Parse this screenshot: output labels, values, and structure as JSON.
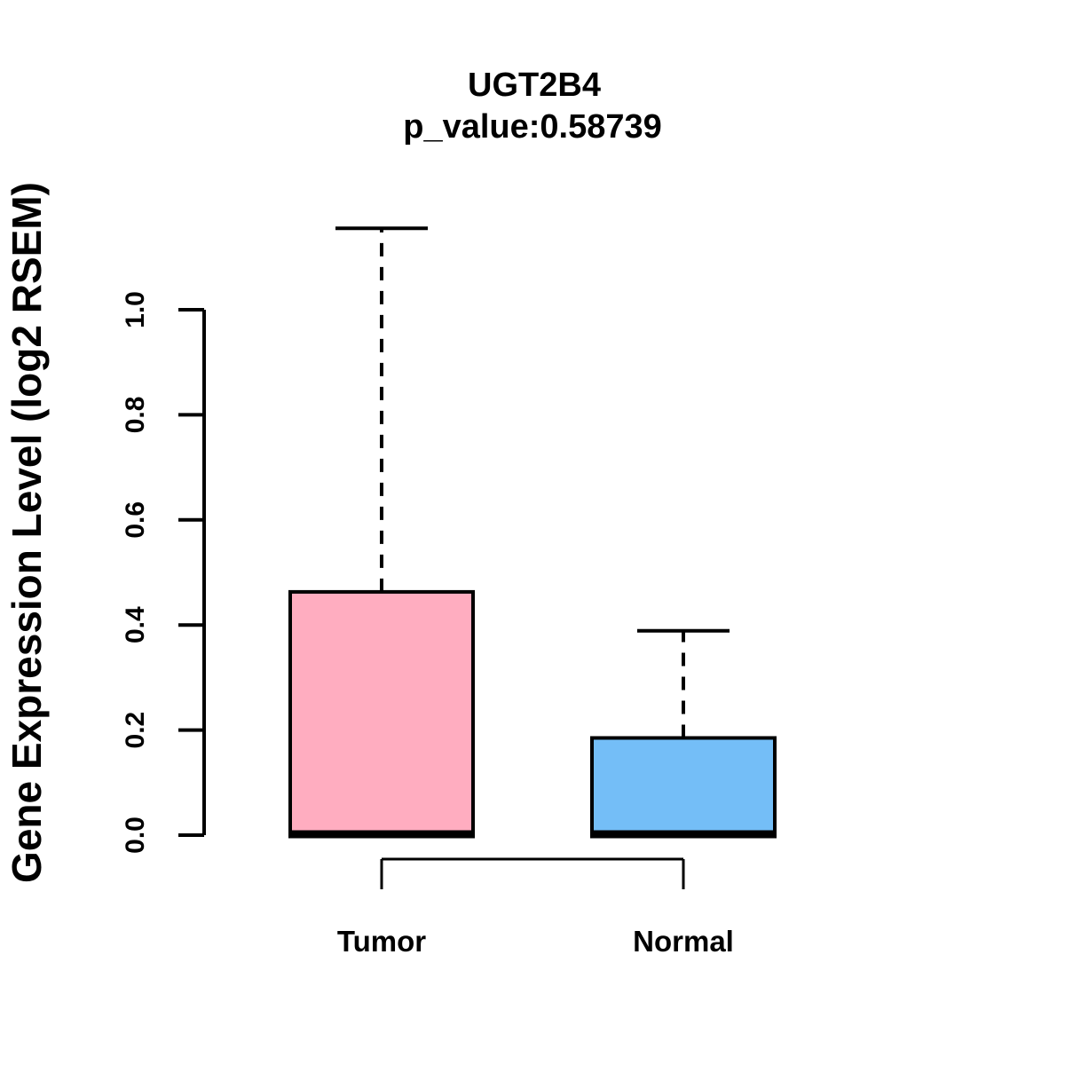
{
  "title": "UGT2B4",
  "subtitle": "p_value:0.58739",
  "chart_data": {
    "type": "boxplot",
    "title": "UGT2B4",
    "subtitle": "p_value:0.58739",
    "ylabel": "Gene Expression Level (log2 RSEM)",
    "xlabel": "",
    "ylim": [
      0.0,
      1.16
    ],
    "yticks": [
      0.0,
      0.2,
      0.4,
      0.6,
      0.8,
      1.0
    ],
    "grid": "off",
    "legend": "none",
    "groups": [
      {
        "label": "Tumor",
        "color": "#FFADC0",
        "whisker_low": 0.0,
        "q1": 0.0,
        "median": 0.0,
        "q3": 0.463,
        "whisker_high": 1.155
      },
      {
        "label": "Normal",
        "color": "#74BEF7",
        "whisker_low": 0.0,
        "q1": 0.0,
        "median": 0.0,
        "q3": 0.185,
        "whisker_high": 0.389
      }
    ],
    "comparison_bracket": [
      "Tumor",
      "Normal"
    ],
    "stroke_color": "#000000",
    "background_color": "#FFFFFF"
  }
}
